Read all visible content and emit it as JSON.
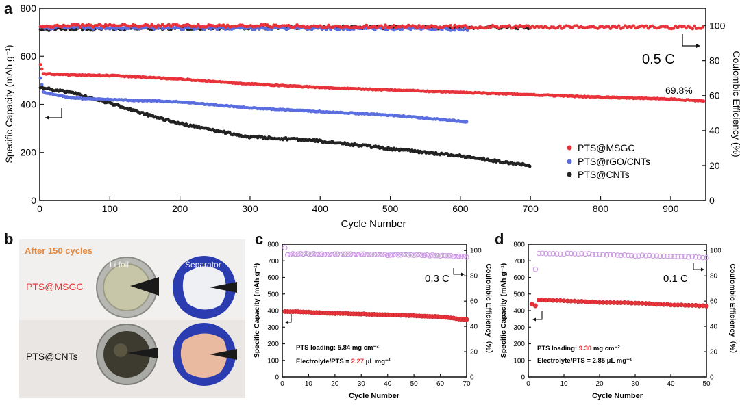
{
  "panels": {
    "a": "a",
    "b": "b",
    "c": "c",
    "d": "d"
  },
  "photo_panel": {
    "header": "After 150 cycles",
    "col1": "Li foil",
    "col2": "Separator",
    "row1": "PTS@MSGC",
    "row2": "PTS@CNTs"
  },
  "colors": {
    "msgc": "#e8333a",
    "rgo": "#5b6ee0",
    "cnts": "#222222",
    "ce_light": "#c896e0",
    "orange": "#e8863a"
  },
  "chart_data": [
    {
      "id": "a",
      "type": "scatter",
      "xlabel": "Cycle Number",
      "ylabel": "Specific Capacity (mAh g⁻¹)",
      "y2label": "Coulombic Efficiency (%)",
      "xlim": [
        0,
        950
      ],
      "ylim": [
        0,
        800
      ],
      "y2lim": [
        0,
        110
      ],
      "xticks": [
        0,
        100,
        200,
        300,
        400,
        500,
        600,
        700,
        800,
        900
      ],
      "yticks": [
        0,
        200,
        400,
        600,
        800
      ],
      "y2ticks": [
        0,
        20,
        40,
        60,
        80,
        100
      ],
      "legend_position": "center-right",
      "annotations": {
        "rate": "0.5 C",
        "retention": "69.8%"
      },
      "series": [
        {
          "name": "PTS@MSGC",
          "color": "#e8333a",
          "capacity": [
            [
              1,
              565
            ],
            [
              5,
              528
            ],
            [
              50,
              522
            ],
            [
              100,
              520
            ],
            [
              200,
              505
            ],
            [
              300,
              485
            ],
            [
              400,
              470
            ],
            [
              500,
              460
            ],
            [
              600,
              450
            ],
            [
              700,
              440
            ],
            [
              800,
              430
            ],
            [
              900,
              422
            ],
            [
              950,
              413
            ]
          ],
          "ce": [
            [
              1,
              100
            ],
            [
              100,
              100
            ],
            [
              500,
              99.5
            ],
            [
              950,
              99
            ]
          ]
        },
        {
          "name": "PTS@rGO/CNTs",
          "color": "#5b6ee0",
          "capacity": [
            [
              1,
              510
            ],
            [
              5,
              450
            ],
            [
              50,
              425
            ],
            [
              100,
              420
            ],
            [
              200,
              410
            ],
            [
              300,
              385
            ],
            [
              400,
              370
            ],
            [
              500,
              355
            ],
            [
              600,
              330
            ],
            [
              610,
              325
            ]
          ],
          "ce": [
            [
              1,
              99
            ],
            [
              300,
              98.5
            ],
            [
              610,
              98
            ]
          ]
        },
        {
          "name": "PTS@CNTs",
          "color": "#222222",
          "capacity": [
            [
              1,
              470
            ],
            [
              50,
              445
            ],
            [
              100,
              405
            ],
            [
              150,
              360
            ],
            [
              200,
              320
            ],
            [
              250,
              290
            ],
            [
              300,
              265
            ],
            [
              400,
              248
            ],
            [
              500,
              215
            ],
            [
              600,
              185
            ],
            [
              700,
              145
            ]
          ],
          "ce": [
            [
              1,
              98
            ],
            [
              350,
              99
            ],
            [
              700,
              99
            ]
          ]
        }
      ]
    },
    {
      "id": "c",
      "type": "scatter",
      "xlabel": "Cycle Number",
      "ylabel": "Specific Capacity (mAh g⁻¹)",
      "y2label": "Coulombic Efficiency（%）",
      "xlim": [
        0,
        70
      ],
      "ylim": [
        0,
        800
      ],
      "y2lim": [
        0,
        105
      ],
      "xticks": [
        0,
        10,
        20,
        30,
        40,
        50,
        60,
        70
      ],
      "yticks": [
        0,
        100,
        200,
        300,
        400,
        500,
        600,
        700,
        800
      ],
      "y2ticks": [
        0,
        20,
        40,
        60,
        80,
        100
      ],
      "annotations": {
        "rate": "0.3 C",
        "loading_prefix": "PTS loading: ",
        "loading_value": "5.84 mg cm⁻²",
        "ratio_prefix": "Electrolyte/PTS = ",
        "ratio_value": "2.27",
        "ratio_unit": " μL mg⁻¹"
      },
      "series": [
        {
          "name": "capacity",
          "color": "#e8333a",
          "points": [
            [
              1,
              395
            ],
            [
              10,
              390
            ],
            [
              20,
              383
            ],
            [
              30,
              380
            ],
            [
              40,
              375
            ],
            [
              50,
              370
            ],
            [
              60,
              362
            ],
            [
              70,
              345
            ]
          ]
        },
        {
          "name": "CE",
          "color": "#c896e0",
          "points": [
            [
              1,
              102
            ],
            [
              2,
              97
            ],
            [
              10,
              97.5
            ],
            [
              20,
              97
            ],
            [
              30,
              97
            ],
            [
              40,
              96.5
            ],
            [
              50,
              96.5
            ],
            [
              60,
              96
            ],
            [
              70,
              95
            ]
          ]
        }
      ]
    },
    {
      "id": "d",
      "type": "scatter",
      "xlabel": "Cycle Number",
      "ylabel": "Specific Capacity (mAh g⁻¹)",
      "y2label": "Coulombic Efficiency（%）",
      "xlim": [
        0,
        50
      ],
      "ylim": [
        0,
        800
      ],
      "y2lim": [
        0,
        105
      ],
      "xticks": [
        0,
        10,
        20,
        30,
        40,
        50
      ],
      "yticks": [
        0,
        100,
        200,
        300,
        400,
        500,
        600,
        700,
        800
      ],
      "y2ticks": [
        0,
        20,
        40,
        60,
        80,
        100
      ],
      "annotations": {
        "rate": "0.1 C",
        "loading_prefix": "PTS loading: ",
        "loading_value": "9.30",
        "loading_unit": " mg cm⁻²",
        "ratio_prefix": "Electrolyte/PTS = ",
        "ratio_value": "2.85 μL mg⁻¹"
      },
      "series": [
        {
          "name": "capacity",
          "color": "#e8333a",
          "points": [
            [
              1,
              440
            ],
            [
              2,
              430
            ],
            [
              3,
              465
            ],
            [
              10,
              460
            ],
            [
              20,
              450
            ],
            [
              30,
              445
            ],
            [
              40,
              435
            ],
            [
              50,
              428
            ]
          ]
        },
        {
          "name": "CE",
          "color": "#c896e0",
          "points": [
            [
              2,
              85
            ],
            [
              3,
              98
            ],
            [
              10,
              97.5
            ],
            [
              20,
              97
            ],
            [
              30,
              96
            ],
            [
              40,
              95.5
            ],
            [
              50,
              94.5
            ]
          ]
        }
      ]
    }
  ]
}
